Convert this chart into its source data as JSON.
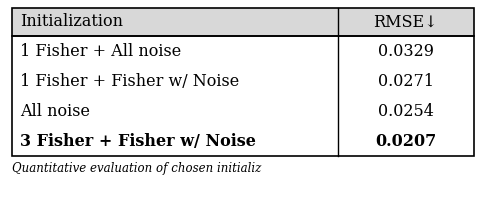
{
  "header": [
    "Initialization",
    "RMSE↓"
  ],
  "rows": [
    [
      "1 Fisher + All noise",
      "0.0329",
      false
    ],
    [
      "1 Fisher + Fisher w/ Noise",
      "0.0271",
      false
    ],
    [
      "All noise",
      "0.0254",
      false
    ],
    [
      "3 Fisher + Fisher w/ Noise",
      "0.0207",
      true
    ]
  ],
  "col_split": 0.705,
  "header_fontsize": 11.5,
  "body_fontsize": 11.5,
  "background_color": "#ffffff",
  "header_bg": "#d8d8d8",
  "border_color": "#000000",
  "caption": "Quantitative evaluation of chosen initializ",
  "caption_fontsize": 8.5,
  "fig_width": 4.86,
  "fig_height": 2.12,
  "dpi": 100
}
